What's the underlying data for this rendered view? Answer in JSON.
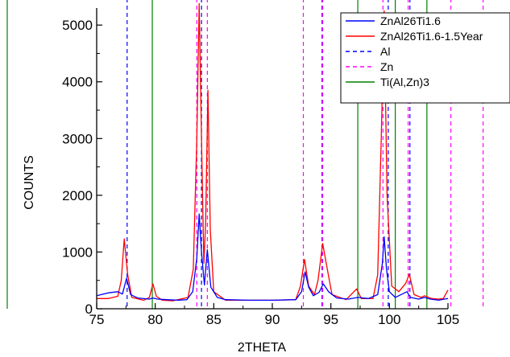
{
  "chart_data": {
    "type": "line",
    "xlabel": "2THETA",
    "ylabel": "COUNTS",
    "xlim": [
      75,
      105
    ],
    "ylim": [
      0,
      5300
    ],
    "xticks": [
      75,
      80,
      85,
      90,
      95,
      100,
      105
    ],
    "yticks": [
      0,
      1000,
      2000,
      3000,
      4000,
      5000
    ],
    "grid": false,
    "legend_position": "top-right",
    "series": [
      {
        "name": "ZnAl26Ti1.6",
        "color": "#0000ff",
        "style": "solid",
        "points": [
          [
            75,
            230
          ],
          [
            76,
            280
          ],
          [
            76.8,
            300
          ],
          [
            77.2,
            260
          ],
          [
            77.55,
            540
          ],
          [
            77.9,
            250
          ],
          [
            78.5,
            190
          ],
          [
            79.5,
            170
          ],
          [
            79.8,
            190
          ],
          [
            80.2,
            170
          ],
          [
            81,
            160
          ],
          [
            82,
            150
          ],
          [
            82.7,
            160
          ],
          [
            83.2,
            300
          ],
          [
            83.55,
            900
          ],
          [
            83.75,
            1670
          ],
          [
            83.95,
            1000
          ],
          [
            84.2,
            420
          ],
          [
            84.45,
            1040
          ],
          [
            84.75,
            380
          ],
          [
            85.3,
            200
          ],
          [
            86,
            160
          ],
          [
            88,
            150
          ],
          [
            90,
            150
          ],
          [
            92,
            160
          ],
          [
            92.5,
            300
          ],
          [
            92.8,
            650
          ],
          [
            93.1,
            380
          ],
          [
            93.5,
            230
          ],
          [
            94,
            290
          ],
          [
            94.35,
            440
          ],
          [
            94.8,
            300
          ],
          [
            95.5,
            190
          ],
          [
            96.5,
            170
          ],
          [
            97.3,
            200
          ],
          [
            98.2,
            180
          ],
          [
            99,
            250
          ],
          [
            99.4,
            800
          ],
          [
            99.55,
            1270
          ],
          [
            99.75,
            700
          ],
          [
            100,
            300
          ],
          [
            100.5,
            200
          ],
          [
            101.5,
            300
          ],
          [
            101.8,
            200
          ],
          [
            102.5,
            170
          ],
          [
            103,
            200
          ],
          [
            103.5,
            170
          ],
          [
            104.2,
            150
          ],
          [
            104.7,
            170
          ],
          [
            105,
            180
          ]
        ]
      },
      {
        "name": "ZnAl26Ti1.6-1.5Year",
        "color": "#ff0000",
        "style": "solid",
        "points": [
          [
            75,
            180
          ],
          [
            76,
            180
          ],
          [
            76.8,
            220
          ],
          [
            77.1,
            500
          ],
          [
            77.35,
            1230
          ],
          [
            77.65,
            600
          ],
          [
            78,
            200
          ],
          [
            79,
            150
          ],
          [
            79.5,
            200
          ],
          [
            79.8,
            440
          ],
          [
            80.1,
            220
          ],
          [
            80.6,
            150
          ],
          [
            81.5,
            140
          ],
          [
            82.8,
            200
          ],
          [
            83.25,
            700
          ],
          [
            83.55,
            3000
          ],
          [
            83.75,
            5380
          ],
          [
            83.95,
            3000
          ],
          [
            84.15,
            800
          ],
          [
            84.3,
            1500
          ],
          [
            84.5,
            3850
          ],
          [
            84.7,
            1400
          ],
          [
            85,
            300
          ],
          [
            86,
            150
          ],
          [
            88,
            150
          ],
          [
            90,
            150
          ],
          [
            92,
            160
          ],
          [
            92.4,
            400
          ],
          [
            92.75,
            870
          ],
          [
            93.1,
            400
          ],
          [
            93.6,
            250
          ],
          [
            93.9,
            500
          ],
          [
            94.3,
            1150
          ],
          [
            94.6,
            800
          ],
          [
            95.1,
            250
          ],
          [
            96.3,
            160
          ],
          [
            97.2,
            350
          ],
          [
            97.6,
            180
          ],
          [
            98.6,
            180
          ],
          [
            99.0,
            600
          ],
          [
            99.3,
            3000
          ],
          [
            99.55,
            5250
          ],
          [
            99.8,
            2000
          ],
          [
            100.2,
            400
          ],
          [
            100.8,
            300
          ],
          [
            101.4,
            450
          ],
          [
            101.7,
            610
          ],
          [
            102.1,
            250
          ],
          [
            102.7,
            200
          ],
          [
            103.0,
            230
          ],
          [
            103.6,
            180
          ],
          [
            104.2,
            170
          ],
          [
            104.6,
            180
          ],
          [
            105,
            330
          ]
        ]
      },
      {
        "name": "Al",
        "color": "#0000ff",
        "style": "dashed",
        "markers": [
          77.6,
          83.95,
          94.25,
          99.9,
          101.75
        ]
      },
      {
        "name": "Zn",
        "color": "#ff00ff",
        "style": "dashed",
        "markers": [
          83.55,
          84.45,
          92.65,
          94.3,
          99.45,
          101.6,
          105.25,
          108.0
        ]
      },
      {
        "name": "Ti(Al,Zn)3",
        "color": "#008000",
        "style": "solid",
        "markers": [
          79.75,
          97.3,
          100.5,
          103.2
        ]
      }
    ]
  }
}
